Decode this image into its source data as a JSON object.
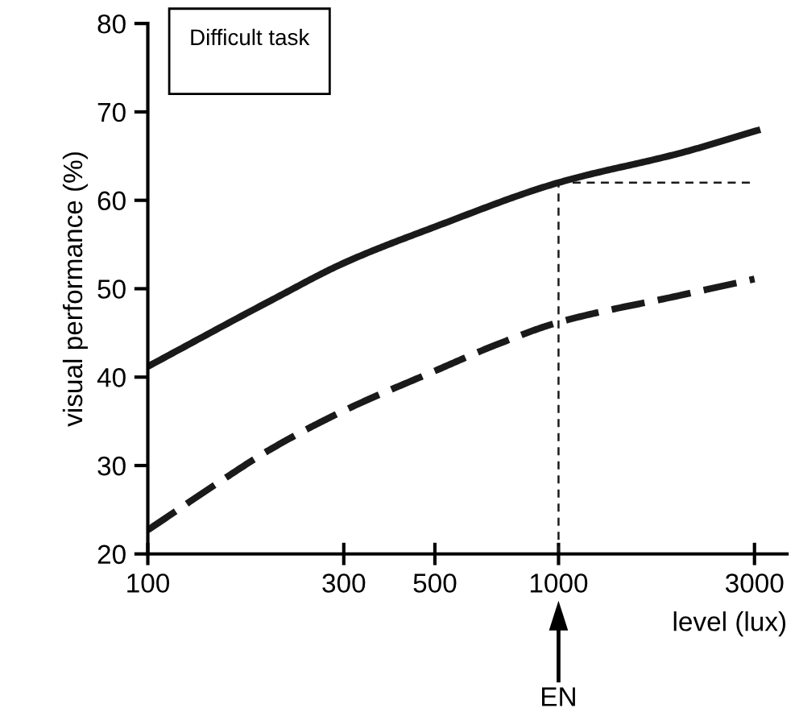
{
  "chart_data": {
    "type": "line",
    "xlabel": "level (lux)",
    "ylabel": "visual performance (%)",
    "annotations": [
      "Difficult task",
      "EN"
    ],
    "log": "x",
    "xlim": [
      100,
      3600
    ],
    "ylim": [
      20,
      80
    ],
    "xticks": [
      100,
      300,
      500,
      1000,
      3000
    ],
    "yticks": [
      20,
      30,
      40,
      50,
      60,
      70,
      80
    ],
    "grid": false,
    "marker": "none",
    "series": [
      {
        "color": "#1a1a1a",
        "line_style": "solid",
        "x": [
          100,
          200,
          300,
          500,
          1000,
          2000,
          3100
        ],
        "values": [
          41.2,
          48.7,
          52.9,
          57,
          62,
          65.4,
          68
        ]
      },
      {
        "color": "#1a1a1a",
        "line_style": "dashed",
        "x": [
          100,
          150,
          200,
          300,
          500,
          700,
          1000,
          2000,
          3000
        ],
        "values": [
          22.7,
          28.2,
          31.9,
          36.2,
          40.7,
          43.6,
          46.2,
          49.3,
          51.1
        ]
      }
    ],
    "ref_lines": [
      {
        "axis": "x",
        "value": 1000,
        "line_style": "dotted",
        "color": "#1a1a1a"
      },
      {
        "axis": "y",
        "value": 62,
        "line_style": "dotted",
        "color": "#1a1a1a"
      }
    ]
  }
}
